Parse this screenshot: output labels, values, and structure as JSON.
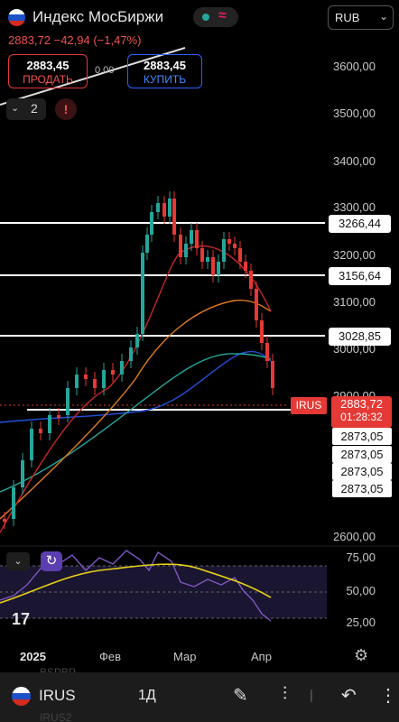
{
  "header": {
    "title": "Индекс МосБиржи",
    "currency": "RUB",
    "quote": "2883,72  −42,94 (−1,47%)",
    "status_dot_color": "#26a69a",
    "wave_icon": "wave-icon"
  },
  "trade": {
    "sell_price": "2883,45",
    "sell_label": "ПРОДАТЬ",
    "spread": "0,00",
    "buy_price": "2883,45",
    "buy_label": "КУПИТЬ"
  },
  "indicators": {
    "count": "2",
    "warn": "!"
  },
  "price_axis": {
    "labels": [
      "3600,00",
      "3500,00",
      "3400,00",
      "3300,00",
      "3200,00",
      "3100,00",
      "3000,00",
      "2900,00",
      "2600,00"
    ],
    "horizontal_lines": [
      "3266,44",
      "3156,64",
      "3028,85"
    ],
    "symbol_tag": "IRUS",
    "last_price": "2883,72",
    "countdown": "01:28:32",
    "stacked": [
      "2873,05",
      "2873,05",
      "2873,05",
      "2873,05"
    ]
  },
  "rsi_axis": {
    "labels": [
      "75,00",
      "50,00",
      "25,00"
    ]
  },
  "time_axis": {
    "labels": [
      "2025",
      "Фев",
      "Мар",
      "Апр"
    ]
  },
  "ghost_text": [
    "BSPBP",
    "IRUS2"
  ],
  "bottom": {
    "symbol": "IRUS",
    "interval": "1Д"
  },
  "colors": {
    "down": "#e53935",
    "up": "#26a69a",
    "accent": "#2962ff"
  }
}
